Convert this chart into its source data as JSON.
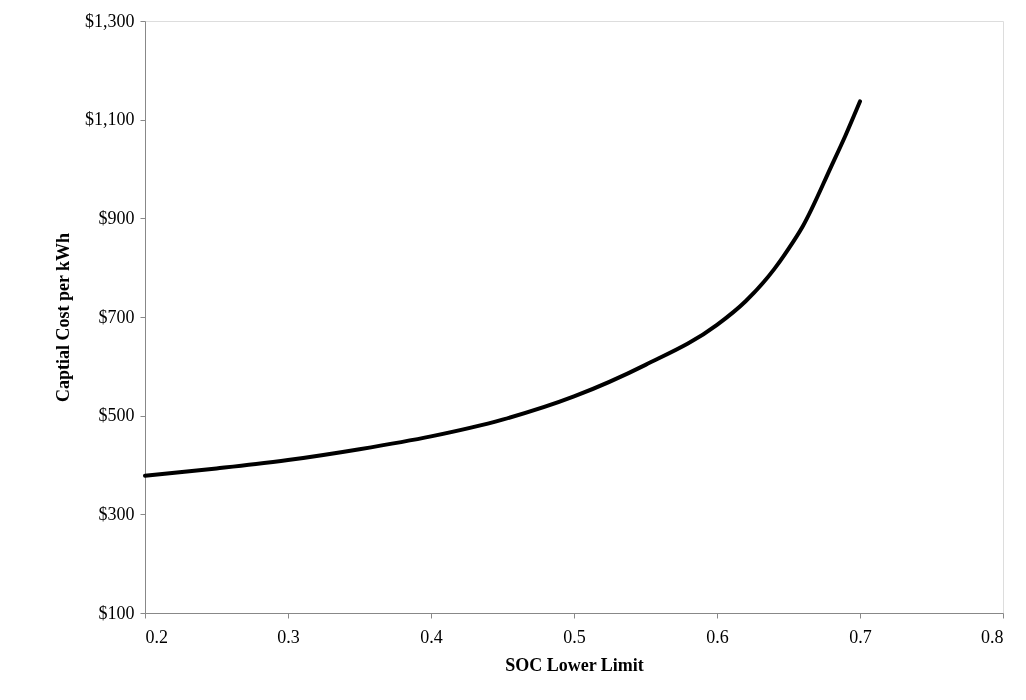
{
  "chart_data": {
    "type": "line",
    "xlabel": "SOC Lower Limit",
    "ylabel": "Captial Cost per kWh",
    "x": [
      0.2,
      0.25,
      0.3,
      0.35,
      0.4,
      0.45,
      0.5,
      0.55,
      0.6,
      0.62,
      0.64,
      0.65,
      0.66,
      0.68,
      0.69,
      0.7
    ],
    "series": [
      {
        "color": "#000000",
        "values": [
          378,
          393,
          410,
          432,
          458,
          492,
          539,
          603,
          684,
          732,
          797,
          838,
          884,
          1006,
          1069,
          1137
        ]
      }
    ],
    "xlim": [
      0.2,
      0.8
    ],
    "xticks": [
      0.2,
      0.3,
      0.4,
      0.5,
      0.6,
      0.7,
      0.8
    ],
    "ylim": [
      100,
      1300
    ],
    "yticks": [
      {
        "value": 100,
        "label": "$100"
      },
      {
        "value": 300,
        "label": "$300"
      },
      {
        "value": 500,
        "label": "$500"
      },
      {
        "value": 700,
        "label": "$700"
      },
      {
        "value": 900,
        "label": "$900"
      },
      {
        "value": 1100,
        "label": "$1,100"
      },
      {
        "value": 1300,
        "label": "$1,300"
      }
    ],
    "grid": false,
    "marker": "none",
    "line_style": "solid"
  }
}
